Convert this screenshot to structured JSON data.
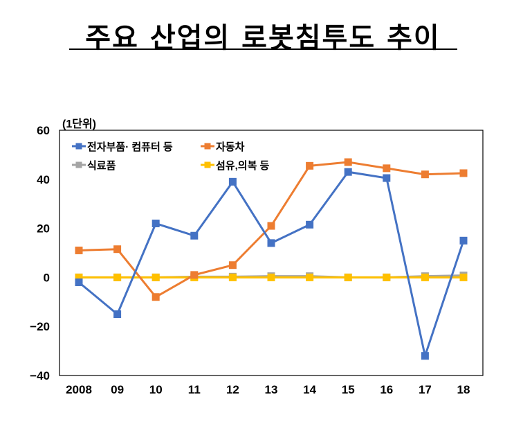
{
  "title": "주요 산업의 로봇침투도 추이",
  "chart_data": {
    "type": "line",
    "unit_label": "(1단위)",
    "categories": [
      "2008",
      "09",
      "10",
      "11",
      "12",
      "13",
      "14",
      "15",
      "16",
      "17",
      "18"
    ],
    "ylim": [
      -40,
      60
    ],
    "yticks": [
      -40,
      -20,
      0,
      20,
      40,
      60
    ],
    "legend_position": "top",
    "grid": false,
    "series": [
      {
        "name": "전자부품· 컴퓨터 등",
        "color": "#4472C4",
        "values": [
          -2,
          -15,
          22,
          17,
          39,
          14,
          21.5,
          43,
          40.5,
          -32,
          15
        ]
      },
      {
        "name": "자동차",
        "color": "#ED7D31",
        "values": [
          11,
          11.5,
          -8,
          1,
          5,
          21,
          45.5,
          47,
          44.5,
          42,
          42.5
        ]
      },
      {
        "name": "식료품",
        "color": "#A5A5A5",
        "values": [
          0,
          0,
          0,
          0.3,
          0.3,
          0.5,
          0.5,
          0,
          0,
          0.5,
          0.8
        ]
      },
      {
        "name": "섬유,의복 등",
        "color": "#FFC000",
        "values": [
          0,
          0,
          0,
          0,
          0,
          0,
          0,
          0,
          0,
          0,
          0
        ]
      }
    ]
  }
}
